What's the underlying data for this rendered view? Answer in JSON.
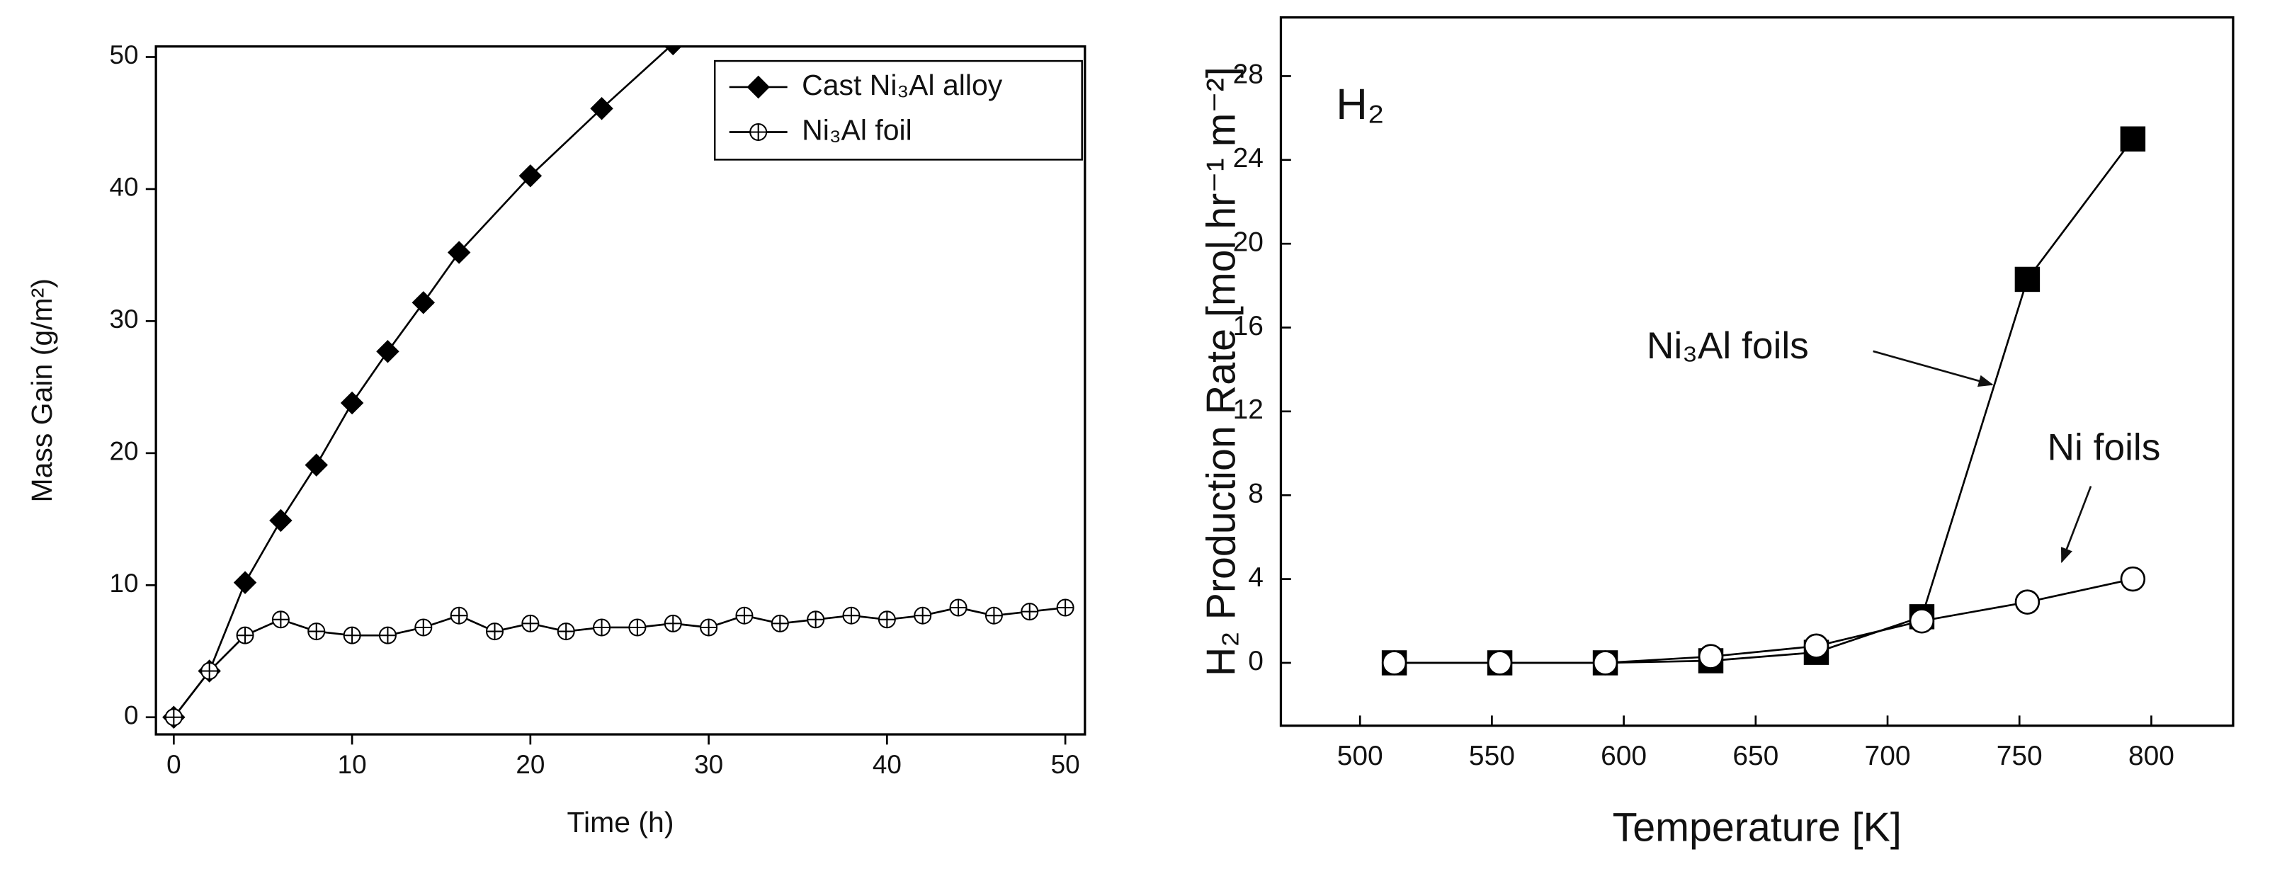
{
  "chart_data": [
    {
      "type": "line",
      "x_label": "Time (h)",
      "y_label": "Mass Gain (g/m²)",
      "xlim": [
        -1,
        51.1
      ],
      "ylim": [
        -1.3,
        50.8
      ],
      "xticks": [
        0,
        10,
        20,
        30,
        40,
        50
      ],
      "yticks": [
        0,
        10,
        20,
        30,
        40,
        50
      ],
      "legend": "top-right",
      "series": [
        {
          "name": "Cast Ni₃Al alloy",
          "color": "#000000",
          "marker": "diamond",
          "x": [
            0,
            2,
            4,
            6,
            8,
            10,
            12,
            14,
            16,
            20,
            24,
            28
          ],
          "values": [
            0,
            3.5,
            10.2,
            14.9,
            19.1,
            23.8,
            27.7,
            31.4,
            35.2,
            41,
            46.1,
            51
          ]
        },
        {
          "name": "Ni₃Al foil",
          "color": "#000000",
          "marker": "circle-plus",
          "x": [
            0,
            2,
            4,
            6,
            8,
            10,
            12,
            14,
            16,
            18,
            20,
            22,
            24,
            26,
            28,
            30,
            32,
            34,
            36,
            38,
            40,
            42,
            44,
            46,
            48,
            50
          ],
          "values": [
            0,
            3.5,
            6.2,
            7.4,
            6.5,
            6.2,
            6.2,
            6.8,
            7.7,
            6.5,
            7.1,
            6.5,
            6.8,
            6.8,
            7.1,
            6.8,
            7.7,
            7.1,
            7.4,
            7.7,
            7.4,
            7.7,
            8.3,
            7.7,
            8.0,
            8.3
          ]
        }
      ]
    },
    {
      "type": "line",
      "title": "H₂",
      "x_label": "Temperature [K]",
      "y_label": "H₂ Production Rate [mol hr⁻¹ m⁻²]",
      "xlim": [
        470,
        831
      ],
      "ylim": [
        -3,
        30.8
      ],
      "xticks": [
        500,
        550,
        600,
        650,
        700,
        750,
        800
      ],
      "yticks": [
        0,
        4,
        8,
        12,
        16,
        20,
        24,
        28
      ],
      "legend": "annotations",
      "series": [
        {
          "name": "Ni₃Al foils",
          "color": "#000000",
          "marker": "square",
          "x": [
            513,
            553,
            593,
            633,
            673,
            713,
            753,
            793
          ],
          "values": [
            0,
            0,
            0,
            0.1,
            0.5,
            2.2,
            18.3,
            25.0
          ]
        },
        {
          "name": "Ni foils",
          "color": "#000000",
          "marker": "circle",
          "x": [
            513,
            553,
            593,
            633,
            673,
            713,
            753,
            793
          ],
          "values": [
            0,
            0,
            0,
            0.3,
            0.8,
            2.0,
            2.9,
            4.0
          ]
        }
      ]
    }
  ]
}
